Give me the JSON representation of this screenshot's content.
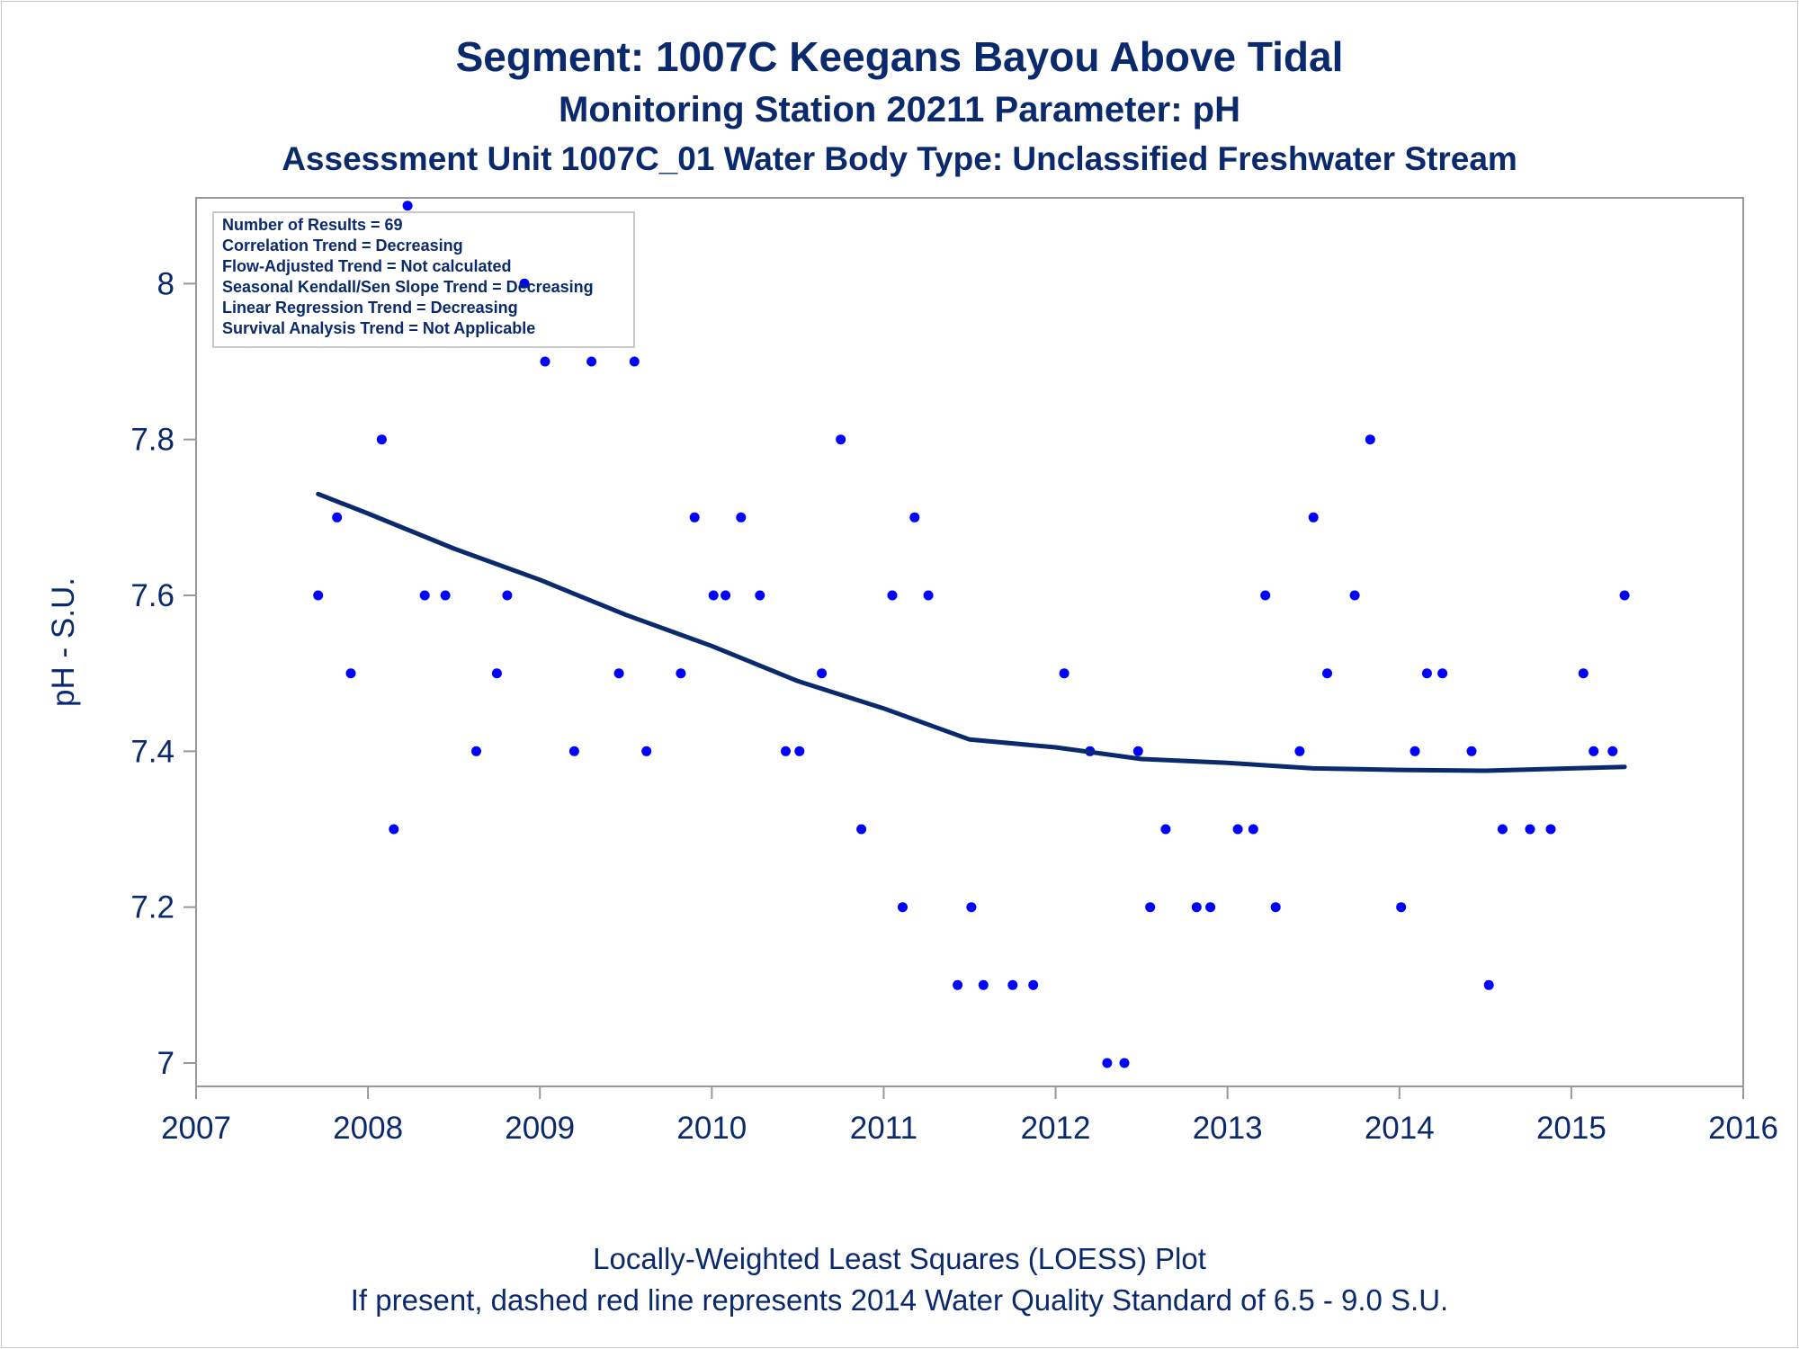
{
  "colors": {
    "text": "#0b2a6e",
    "axis": "#999999",
    "point": "#0000ff",
    "trend_line": "#0b2a6e",
    "stats_border": "#c8c8c8"
  },
  "chart_data": {
    "type": "scatter",
    "title": "Segment: 1007C  Keegans Bayou Above Tidal",
    "subtitle": "Monitoring Station 20211 Parameter: pH",
    "subtitle2": "Assessment Unit 1007C_01   Water Body Type: Unclassified Freshwater Stream",
    "xlabel": "",
    "ylabel": "pH - S.U.",
    "xlim": [
      2007,
      2016
    ],
    "ylim": [
      6.97,
      8.11
    ],
    "x_ticks": [
      2007,
      2008,
      2009,
      2010,
      2011,
      2012,
      2013,
      2014,
      2015,
      2016
    ],
    "y_ticks": [
      7,
      7.2,
      7.4,
      7.6,
      7.8,
      8
    ],
    "grid": false,
    "stats_box": [
      "Number of Results = 69",
      "Correlation Trend = Decreasing",
      "Flow-Adjusted Trend = Not calculated",
      "Seasonal Kendall/Sen Slope Trend = Decreasing",
      "Linear Regression Trend = Decreasing",
      "Survival Analysis Trend = Not Applicable"
    ],
    "footnotes": [
      "Locally-Weighted Least Squares (LOESS) Plot",
      "If present, dashed red line represents 2014 Water Quality Standard of 6.5 - 9.0 S.U."
    ],
    "series": [
      {
        "type": "scatter",
        "x": [
          2007.71,
          2007.82,
          2007.9,
          2008.08,
          2008.15,
          2008.23,
          2008.33,
          2008.45,
          2008.63,
          2008.75,
          2008.81,
          2008.91,
          2009.03,
          2009.2,
          2009.3,
          2009.46,
          2009.55,
          2009.62,
          2009.82,
          2009.9,
          2010.01,
          2010.08,
          2010.17,
          2010.28,
          2010.43,
          2010.51,
          2010.64,
          2010.75,
          2010.87,
          2011.05,
          2011.11,
          2011.18,
          2011.26,
          2011.43,
          2011.51,
          2011.58,
          2011.75,
          2011.87,
          2012.05,
          2012.2,
          2012.3,
          2012.4,
          2012.48,
          2012.55,
          2012.64,
          2012.82,
          2012.9,
          2013.06,
          2013.15,
          2013.22,
          2013.28,
          2013.42,
          2013.5,
          2013.58,
          2013.74,
          2013.83,
          2014.01,
          2014.09,
          2014.16,
          2014.25,
          2014.42,
          2014.52,
          2014.6,
          2014.76,
          2014.88,
          2015.07,
          2015.13,
          2015.24,
          2015.31
        ],
        "y": [
          7.6,
          7.7,
          7.5,
          7.8,
          7.3,
          8.1,
          7.6,
          7.6,
          7.4,
          7.5,
          7.6,
          8.0,
          7.9,
          7.4,
          7.9,
          7.5,
          7.9,
          7.4,
          7.5,
          7.7,
          7.6,
          7.6,
          7.7,
          7.6,
          7.4,
          7.4,
          7.5,
          7.8,
          7.3,
          7.6,
          7.2,
          7.7,
          7.6,
          7.1,
          7.2,
          7.1,
          7.1,
          7.1,
          7.5,
          7.4,
          7.0,
          7.0,
          7.4,
          7.2,
          7.3,
          7.2,
          7.2,
          7.3,
          7.3,
          7.6,
          7.2,
          7.4,
          7.7,
          7.5,
          7.6,
          7.8,
          7.2,
          7.4,
          7.5,
          7.5,
          7.4,
          7.1,
          7.3,
          7.3,
          7.3,
          7.5,
          7.4,
          7.4,
          7.6
        ]
      },
      {
        "type": "line",
        "x": [
          2007.71,
          2008.0,
          2008.5,
          2009.0,
          2009.5,
          2010.0,
          2010.5,
          2011.0,
          2011.5,
          2012.0,
          2012.5,
          2013.0,
          2013.5,
          2014.0,
          2014.5,
          2015.0,
          2015.31
        ],
        "y": [
          7.73,
          7.705,
          7.66,
          7.62,
          7.575,
          7.535,
          7.49,
          7.455,
          7.415,
          7.405,
          7.39,
          7.385,
          7.378,
          7.376,
          7.375,
          7.378,
          7.38
        ]
      }
    ]
  }
}
